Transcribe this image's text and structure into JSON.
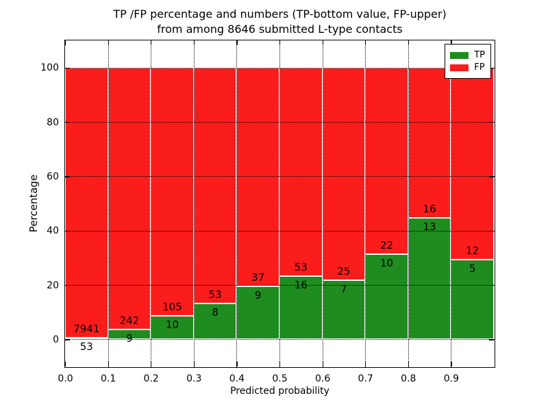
{
  "figure": {
    "title_line1": "TP /FP percentage and numbers (TP-bottom value, FP-upper)",
    "title_line2": "from among 8646 submitted L-type contacts"
  },
  "chart_data": {
    "type": "bar",
    "stacked": true,
    "normalized": "each bin scaled to 100%, bar heights are TP/(TP+FP) percent",
    "title": "TP /FP percentage and numbers (TP-bottom value, FP-upper) from among 8646 submitted L-type contacts",
    "xlabel": "Predicted probability",
    "ylabel": "Percentage",
    "total_submitted_contacts": 8646,
    "bin_width": 0.1,
    "bin_starts": [
      0.0,
      0.1,
      0.2,
      0.3,
      0.4,
      0.5,
      0.6,
      0.7,
      0.8,
      0.9
    ],
    "series": [
      {
        "name": "TP",
        "color": "#1f8c1f",
        "counts": [
          53,
          9,
          10,
          8,
          9,
          16,
          7,
          10,
          13,
          5
        ]
      },
      {
        "name": "FP",
        "color": "#fb1c1c",
        "counts": [
          7941,
          242,
          105,
          53,
          37,
          53,
          25,
          22,
          16,
          12
        ]
      }
    ],
    "xlim": [
      0.0,
      1.0
    ],
    "ylim": [
      -10,
      110
    ],
    "yticks": [
      0,
      20,
      40,
      60,
      80,
      100
    ],
    "xtick_labels": [
      "0.0",
      "0.1",
      "0.2",
      "0.3",
      "0.4",
      "0.5",
      "0.6",
      "0.7",
      "0.8",
      "0.9"
    ],
    "grid": "dotted",
    "legend": {
      "position": "upper right",
      "entries": [
        {
          "label": "TP",
          "color": "#1f8c1f"
        },
        {
          "label": "FP",
          "color": "#fb1c1c"
        }
      ]
    }
  }
}
